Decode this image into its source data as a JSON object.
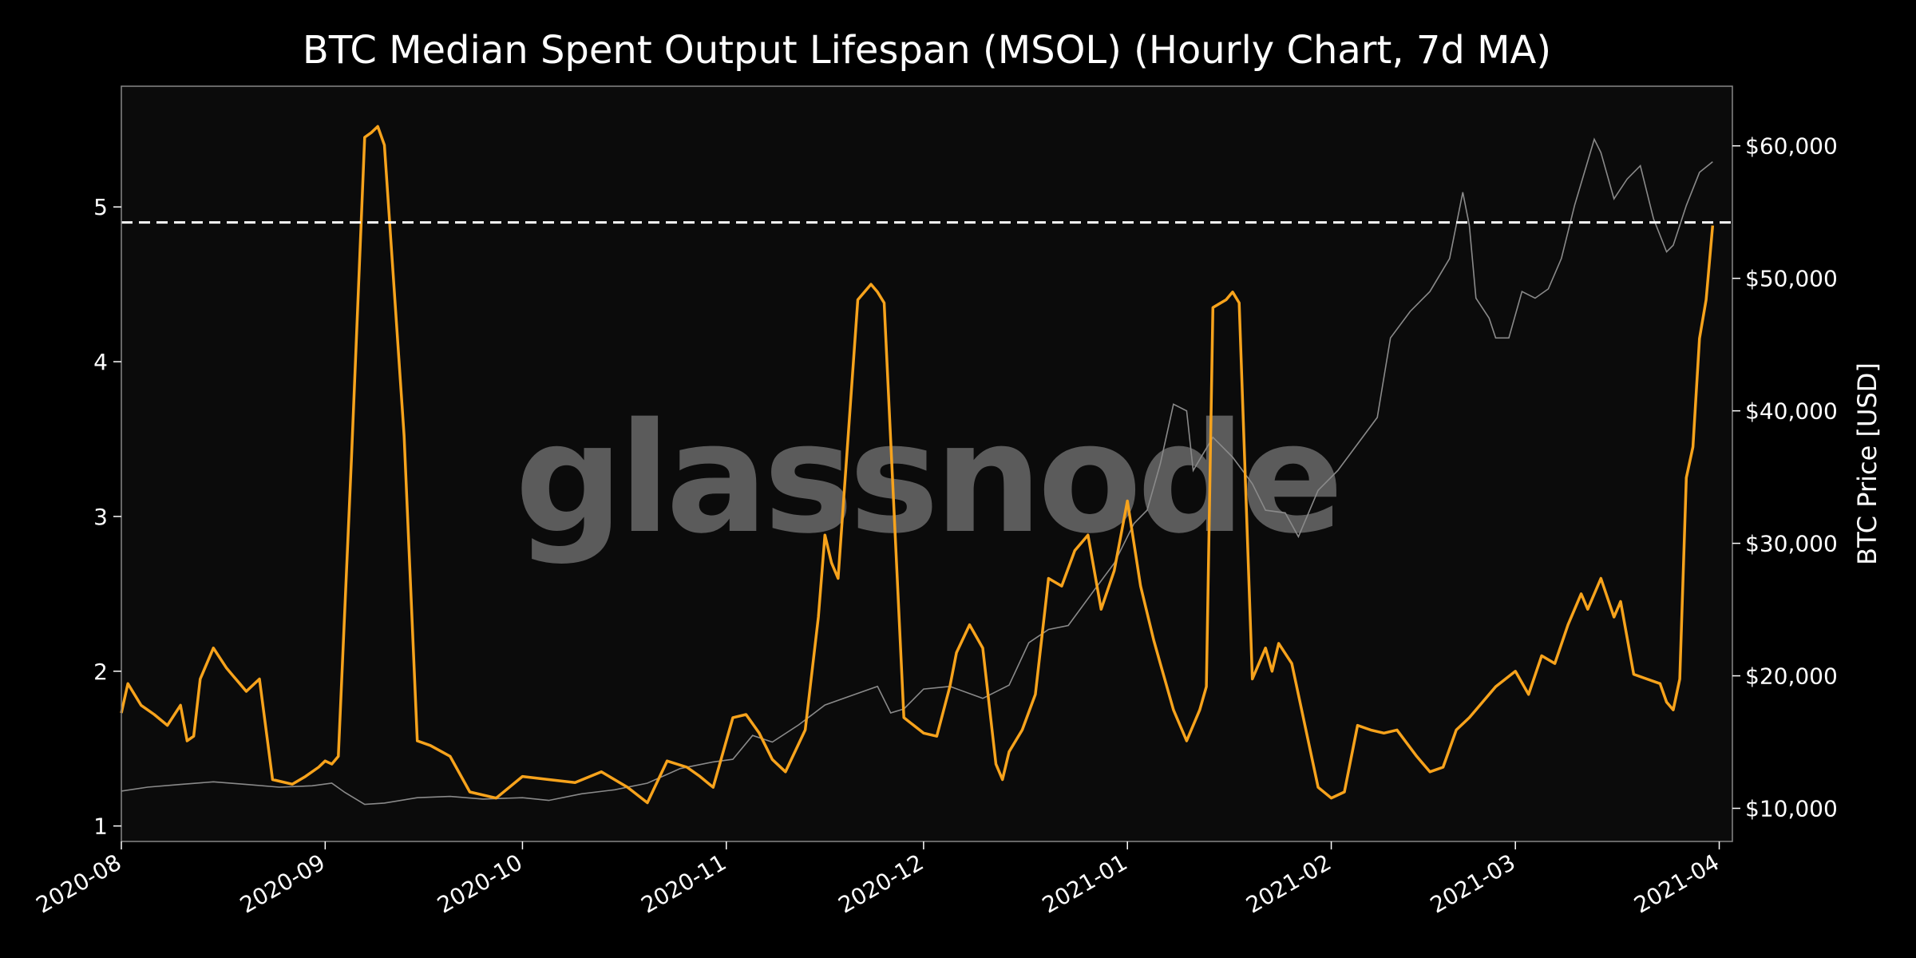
{
  "chart_data": {
    "type": "line",
    "title": "BTC Median Spent Output Lifespan (MSOL) (Hourly Chart, 7d MA)",
    "xlabel": "",
    "ylabel": "",
    "ylabel_right": "BTC Price [USD]",
    "watermark": "glassnode",
    "x_ticks": [
      "2020-08",
      "2020-09",
      "2020-10",
      "2020-11",
      "2020-12",
      "2021-01",
      "2021-02",
      "2021-03",
      "2021-04"
    ],
    "x_range": [
      "2020-08-01",
      "2021-04-03"
    ],
    "y_ticks": [
      "1",
      "2",
      "3",
      "4",
      "5"
    ],
    "ylim": [
      0.9,
      5.78
    ],
    "y_right_ticks": [
      "$10,000",
      "$20,000",
      "$30,000",
      "$40,000",
      "$50,000",
      "$60,000"
    ],
    "ylim_right": [
      7500,
      64500
    ],
    "reference_line": {
      "y": 4.9,
      "style": "dashed"
    },
    "grid": false,
    "legend": "none",
    "colors": {
      "msol": "#f7a31c",
      "price": "#8a8a8a",
      "background": "#0b0b0b",
      "frame": "#888888",
      "text": "#ffffff",
      "reference": "#ffffff"
    },
    "series": [
      {
        "axis": "left",
        "x": [
          "2020-08-01",
          "2020-08-02",
          "2020-08-04",
          "2020-08-06",
          "2020-08-08",
          "2020-08-10",
          "2020-08-11",
          "2020-08-12",
          "2020-08-13",
          "2020-08-15",
          "2020-08-17",
          "2020-08-18",
          "2020-08-19",
          "2020-08-20",
          "2020-08-22",
          "2020-08-24",
          "2020-08-27",
          "2020-08-29",
          "2020-08-31",
          "2020-09-01",
          "2020-09-02",
          "2020-09-03",
          "2020-09-05",
          "2020-09-07",
          "2020-09-08",
          "2020-09-09",
          "2020-09-10",
          "2020-09-13",
          "2020-09-15",
          "2020-09-17",
          "2020-09-20",
          "2020-09-23",
          "2020-09-27",
          "2020-10-01",
          "2020-10-05",
          "2020-10-09",
          "2020-10-13",
          "2020-10-17",
          "2020-10-20",
          "2020-10-23",
          "2020-10-26",
          "2020-10-28",
          "2020-10-30",
          "2020-11-02",
          "2020-11-04",
          "2020-11-06",
          "2020-11-08",
          "2020-11-10",
          "2020-11-13",
          "2020-11-15",
          "2020-11-16",
          "2020-11-17",
          "2020-11-18",
          "2020-11-21",
          "2020-11-23",
          "2020-11-24",
          "2020-11-25",
          "2020-11-28",
          "2020-12-01",
          "2020-12-03",
          "2020-12-05",
          "2020-12-06",
          "2020-12-08",
          "2020-12-10",
          "2020-12-12",
          "2020-12-13",
          "2020-12-14",
          "2020-12-16",
          "2020-12-18",
          "2020-12-20",
          "2020-12-22",
          "2020-12-24",
          "2020-12-26",
          "2020-12-28",
          "2020-12-30",
          "2021-01-01",
          "2021-01-03",
          "2021-01-05",
          "2021-01-06",
          "2021-01-08",
          "2021-01-10",
          "2021-01-12",
          "2021-01-13",
          "2021-01-14",
          "2021-01-16",
          "2021-01-17",
          "2021-01-18",
          "2021-01-20",
          "2021-01-22",
          "2021-01-23",
          "2021-01-24",
          "2021-01-26",
          "2021-01-28",
          "2021-01-30",
          "2021-02-01",
          "2021-02-03",
          "2021-02-05",
          "2021-02-07",
          "2021-02-09",
          "2021-02-11",
          "2021-02-14",
          "2021-02-16",
          "2021-02-18",
          "2021-02-20",
          "2021-02-22",
          "2021-02-24",
          "2021-02-26",
          "2021-03-01",
          "2021-03-03",
          "2021-03-05",
          "2021-03-07",
          "2021-03-09",
          "2021-03-11",
          "2021-03-12",
          "2021-03-14",
          "2021-03-16",
          "2021-03-17",
          "2021-03-19",
          "2021-03-21",
          "2021-03-23",
          "2021-03-24",
          "2021-03-25",
          "2021-03-26",
          "2021-03-27",
          "2021-03-28",
          "2021-03-29",
          "2021-03-30",
          "2021-03-31"
        ],
        "y": [
          1.73,
          1.92,
          1.78,
          1.72,
          1.65,
          1.78,
          1.55,
          1.58,
          1.95,
          2.15,
          2.02,
          1.97,
          1.92,
          1.87,
          1.95,
          1.3,
          1.27,
          1.32,
          1.38,
          1.42,
          1.4,
          1.45,
          3.38,
          5.45,
          5.48,
          5.52,
          5.4,
          3.52,
          1.55,
          1.52,
          1.45,
          1.22,
          1.18,
          1.32,
          1.3,
          1.28,
          1.35,
          1.25,
          1.15,
          1.42,
          1.38,
          1.32,
          1.25,
          1.7,
          1.72,
          1.6,
          1.43,
          1.35,
          1.62,
          2.35,
          2.88,
          2.7,
          2.6,
          4.4,
          4.5,
          4.45,
          4.38,
          1.7,
          1.6,
          1.58,
          1.9,
          2.12,
          2.3,
          2.15,
          1.4,
          1.3,
          1.48,
          1.62,
          1.85,
          2.6,
          2.55,
          2.78,
          2.88,
          2.4,
          2.65,
          3.1,
          2.55,
          2.2,
          2.05,
          1.75,
          1.55,
          1.75,
          1.9,
          4.35,
          4.4,
          4.45,
          4.38,
          1.95,
          2.15,
          2.0,
          2.18,
          2.05,
          1.65,
          1.25,
          1.18,
          1.22,
          1.65,
          1.62,
          1.6,
          1.62,
          1.45,
          1.35,
          1.38,
          1.62,
          1.7,
          1.8,
          1.9,
          2.0,
          1.85,
          2.1,
          2.05,
          2.3,
          2.5,
          2.4,
          2.6,
          2.35,
          2.45,
          1.98,
          1.95,
          1.92,
          1.8,
          1.75,
          1.95,
          3.25,
          3.45,
          4.15,
          4.4,
          4.88
        ]
      },
      {
        "axis": "right",
        "x": [
          "2020-08-01",
          "2020-08-05",
          "2020-08-10",
          "2020-08-15",
          "2020-08-20",
          "2020-08-25",
          "2020-08-30",
          "2020-09-02",
          "2020-09-04",
          "2020-09-07",
          "2020-09-10",
          "2020-09-15",
          "2020-09-20",
          "2020-09-25",
          "2020-10-01",
          "2020-10-05",
          "2020-10-10",
          "2020-10-15",
          "2020-10-20",
          "2020-10-25",
          "2020-10-30",
          "2020-11-02",
          "2020-11-05",
          "2020-11-08",
          "2020-11-12",
          "2020-11-16",
          "2020-11-20",
          "2020-11-24",
          "2020-11-26",
          "2020-11-28",
          "2020-12-01",
          "2020-12-05",
          "2020-12-10",
          "2020-12-14",
          "2020-12-17",
          "2020-12-20",
          "2020-12-23",
          "2020-12-27",
          "2020-12-30",
          "2021-01-02",
          "2021-01-04",
          "2021-01-06",
          "2021-01-08",
          "2021-01-10",
          "2021-01-11",
          "2021-01-14",
          "2021-01-17",
          "2021-01-20",
          "2021-01-22",
          "2021-01-25",
          "2021-01-27",
          "2021-01-30",
          "2021-02-02",
          "2021-02-05",
          "2021-02-08",
          "2021-02-10",
          "2021-02-13",
          "2021-02-16",
          "2021-02-19",
          "2021-02-21",
          "2021-02-22",
          "2021-02-23",
          "2021-02-25",
          "2021-02-26",
          "2021-02-28",
          "2021-03-02",
          "2021-03-04",
          "2021-03-06",
          "2021-03-08",
          "2021-03-10",
          "2021-03-13",
          "2021-03-14",
          "2021-03-16",
          "2021-03-18",
          "2021-03-20",
          "2021-03-22",
          "2021-03-24",
          "2021-03-25",
          "2021-03-27",
          "2021-03-29",
          "2021-03-31"
        ],
        "y": [
          11300,
          11600,
          11800,
          12000,
          11800,
          11600,
          11700,
          11900,
          11200,
          10300,
          10400,
          10800,
          10900,
          10700,
          10800,
          10600,
          11100,
          11400,
          11900,
          13000,
          13500,
          13700,
          15500,
          15000,
          16300,
          17800,
          18500,
          19200,
          17200,
          17500,
          19000,
          19200,
          18300,
          19300,
          22500,
          23500,
          23800,
          26500,
          28500,
          31500,
          32500,
          36000,
          40500,
          40000,
          35500,
          38000,
          36500,
          34500,
          32500,
          32300,
          30500,
          34000,
          35500,
          37500,
          39500,
          45500,
          47500,
          49000,
          51500,
          56500,
          54000,
          48500,
          47000,
          45500,
          45500,
          49000,
          48500,
          49200,
          51500,
          55500,
          60500,
          59500,
          56000,
          57500,
          58500,
          54500,
          52000,
          52500,
          55500,
          58000,
          58800
        ]
      }
    ]
  }
}
